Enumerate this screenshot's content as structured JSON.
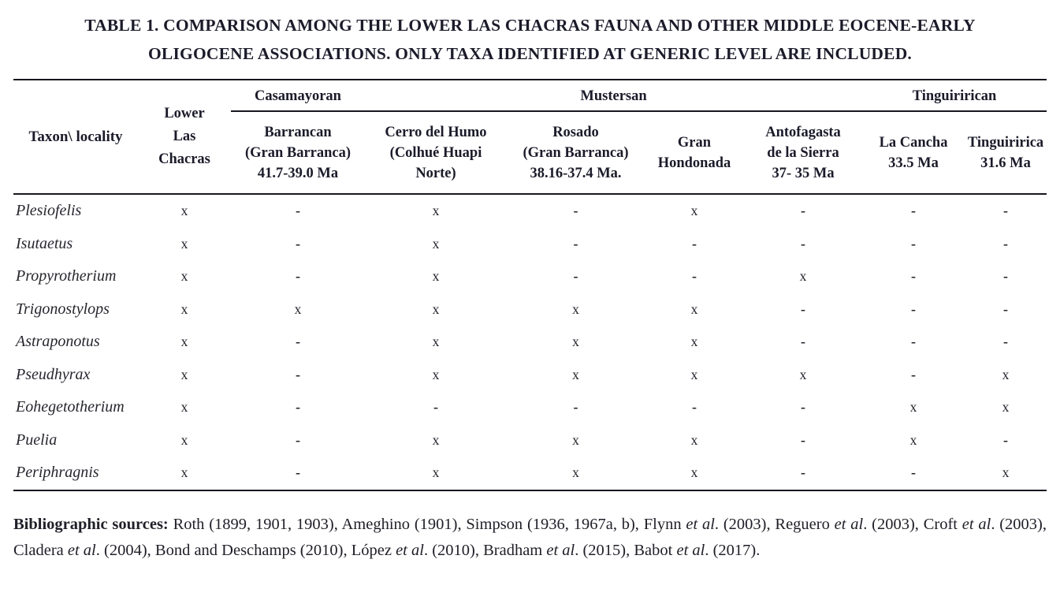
{
  "title": {
    "line1": "TABLE 1. COMPARISON AMONG THE LOWER LAS CHACRAS FAUNA AND OTHER MIDDLE EOCENE-EARLY",
    "line2": "OLIGOCENE ASSOCIATIONS. ONLY TAXA IDENTIFIED AT GENERIC LEVEL ARE INCLUDED."
  },
  "table": {
    "corner_header": "Taxon\\ locality",
    "lower_las_chacras": "Lower\nLas\nChacras",
    "groups": [
      {
        "label": "Casamayoran",
        "span": "1"
      },
      {
        "label": "Mustersan",
        "span": "4"
      },
      {
        "label": "Tinguirirican",
        "span": "2"
      }
    ],
    "subcolumns": [
      "Barrancan\n(Gran Barranca)\n41.7-39.0 Ma",
      "Cerro del Humo\n(Colhué Huapi\nNorte)",
      "Rosado\n(Gran Barranca)\n38.16-37.4 Ma.",
      "Gran\nHondonada",
      "Antofagasta\nde la Sierra\n37- 35 Ma",
      "La Cancha\n33.5 Ma",
      "Tinguiririca\n31.6 Ma"
    ],
    "presence_mark": "x",
    "absence_mark": "-",
    "rows": [
      {
        "taxon": "Plesiofelis",
        "cells": [
          "x",
          "-",
          "x",
          "-",
          "x",
          "-",
          "-",
          "-"
        ]
      },
      {
        "taxon": "Isutaetus",
        "cells": [
          "x",
          "-",
          "x",
          "-",
          "-",
          "-",
          "-",
          "-"
        ]
      },
      {
        "taxon": "Propyrotherium",
        "cells": [
          "x",
          "-",
          "x",
          "-",
          "-",
          "x",
          "-",
          "-"
        ]
      },
      {
        "taxon": "Trigonostylops",
        "cells": [
          "x",
          "x",
          "x",
          "x",
          "x",
          "-",
          "-",
          "-"
        ]
      },
      {
        "taxon": "Astraponotus",
        "cells": [
          "x",
          "-",
          "x",
          "x",
          "x",
          "-",
          "-",
          "-"
        ]
      },
      {
        "taxon": "Pseudhyrax",
        "cells": [
          "x",
          "-",
          "x",
          "x",
          "x",
          "x",
          "-",
          "x"
        ]
      },
      {
        "taxon": "Eohegetotherium",
        "cells": [
          "x",
          "-",
          "-",
          "-",
          "-",
          "-",
          "x",
          "x"
        ]
      },
      {
        "taxon": "Puelia",
        "cells": [
          "x",
          "-",
          "x",
          "x",
          "x",
          "-",
          "x",
          "-"
        ]
      },
      {
        "taxon": "Periphragnis",
        "cells": [
          "x",
          "-",
          "x",
          "x",
          "x",
          "-",
          "-",
          "x"
        ]
      }
    ]
  },
  "footer": {
    "segments": [
      {
        "t": "Bibliographic sources: ",
        "b": true
      },
      {
        "t": "Roth (1899, 1901, 1903), Ameghino (1901), Simpson (1936, 1967a, b), Flynn "
      },
      {
        "t": "et al",
        "i": true
      },
      {
        "t": ". (2003), Reguero "
      },
      {
        "t": "et al",
        "i": true
      },
      {
        "t": ". (2003), Croft "
      },
      {
        "t": "et al",
        "i": true
      },
      {
        "t": ". (2003), Cladera "
      },
      {
        "t": "et al",
        "i": true
      },
      {
        "t": ". (2004), Bond and Deschamps (2010), López "
      },
      {
        "t": "et al",
        "i": true
      },
      {
        "t": ". (2010), Bradham "
      },
      {
        "t": "et al",
        "i": true
      },
      {
        "t": ". (2015), Babot "
      },
      {
        "t": "et al",
        "i": true
      },
      {
        "t": ". (2017)."
      }
    ]
  }
}
